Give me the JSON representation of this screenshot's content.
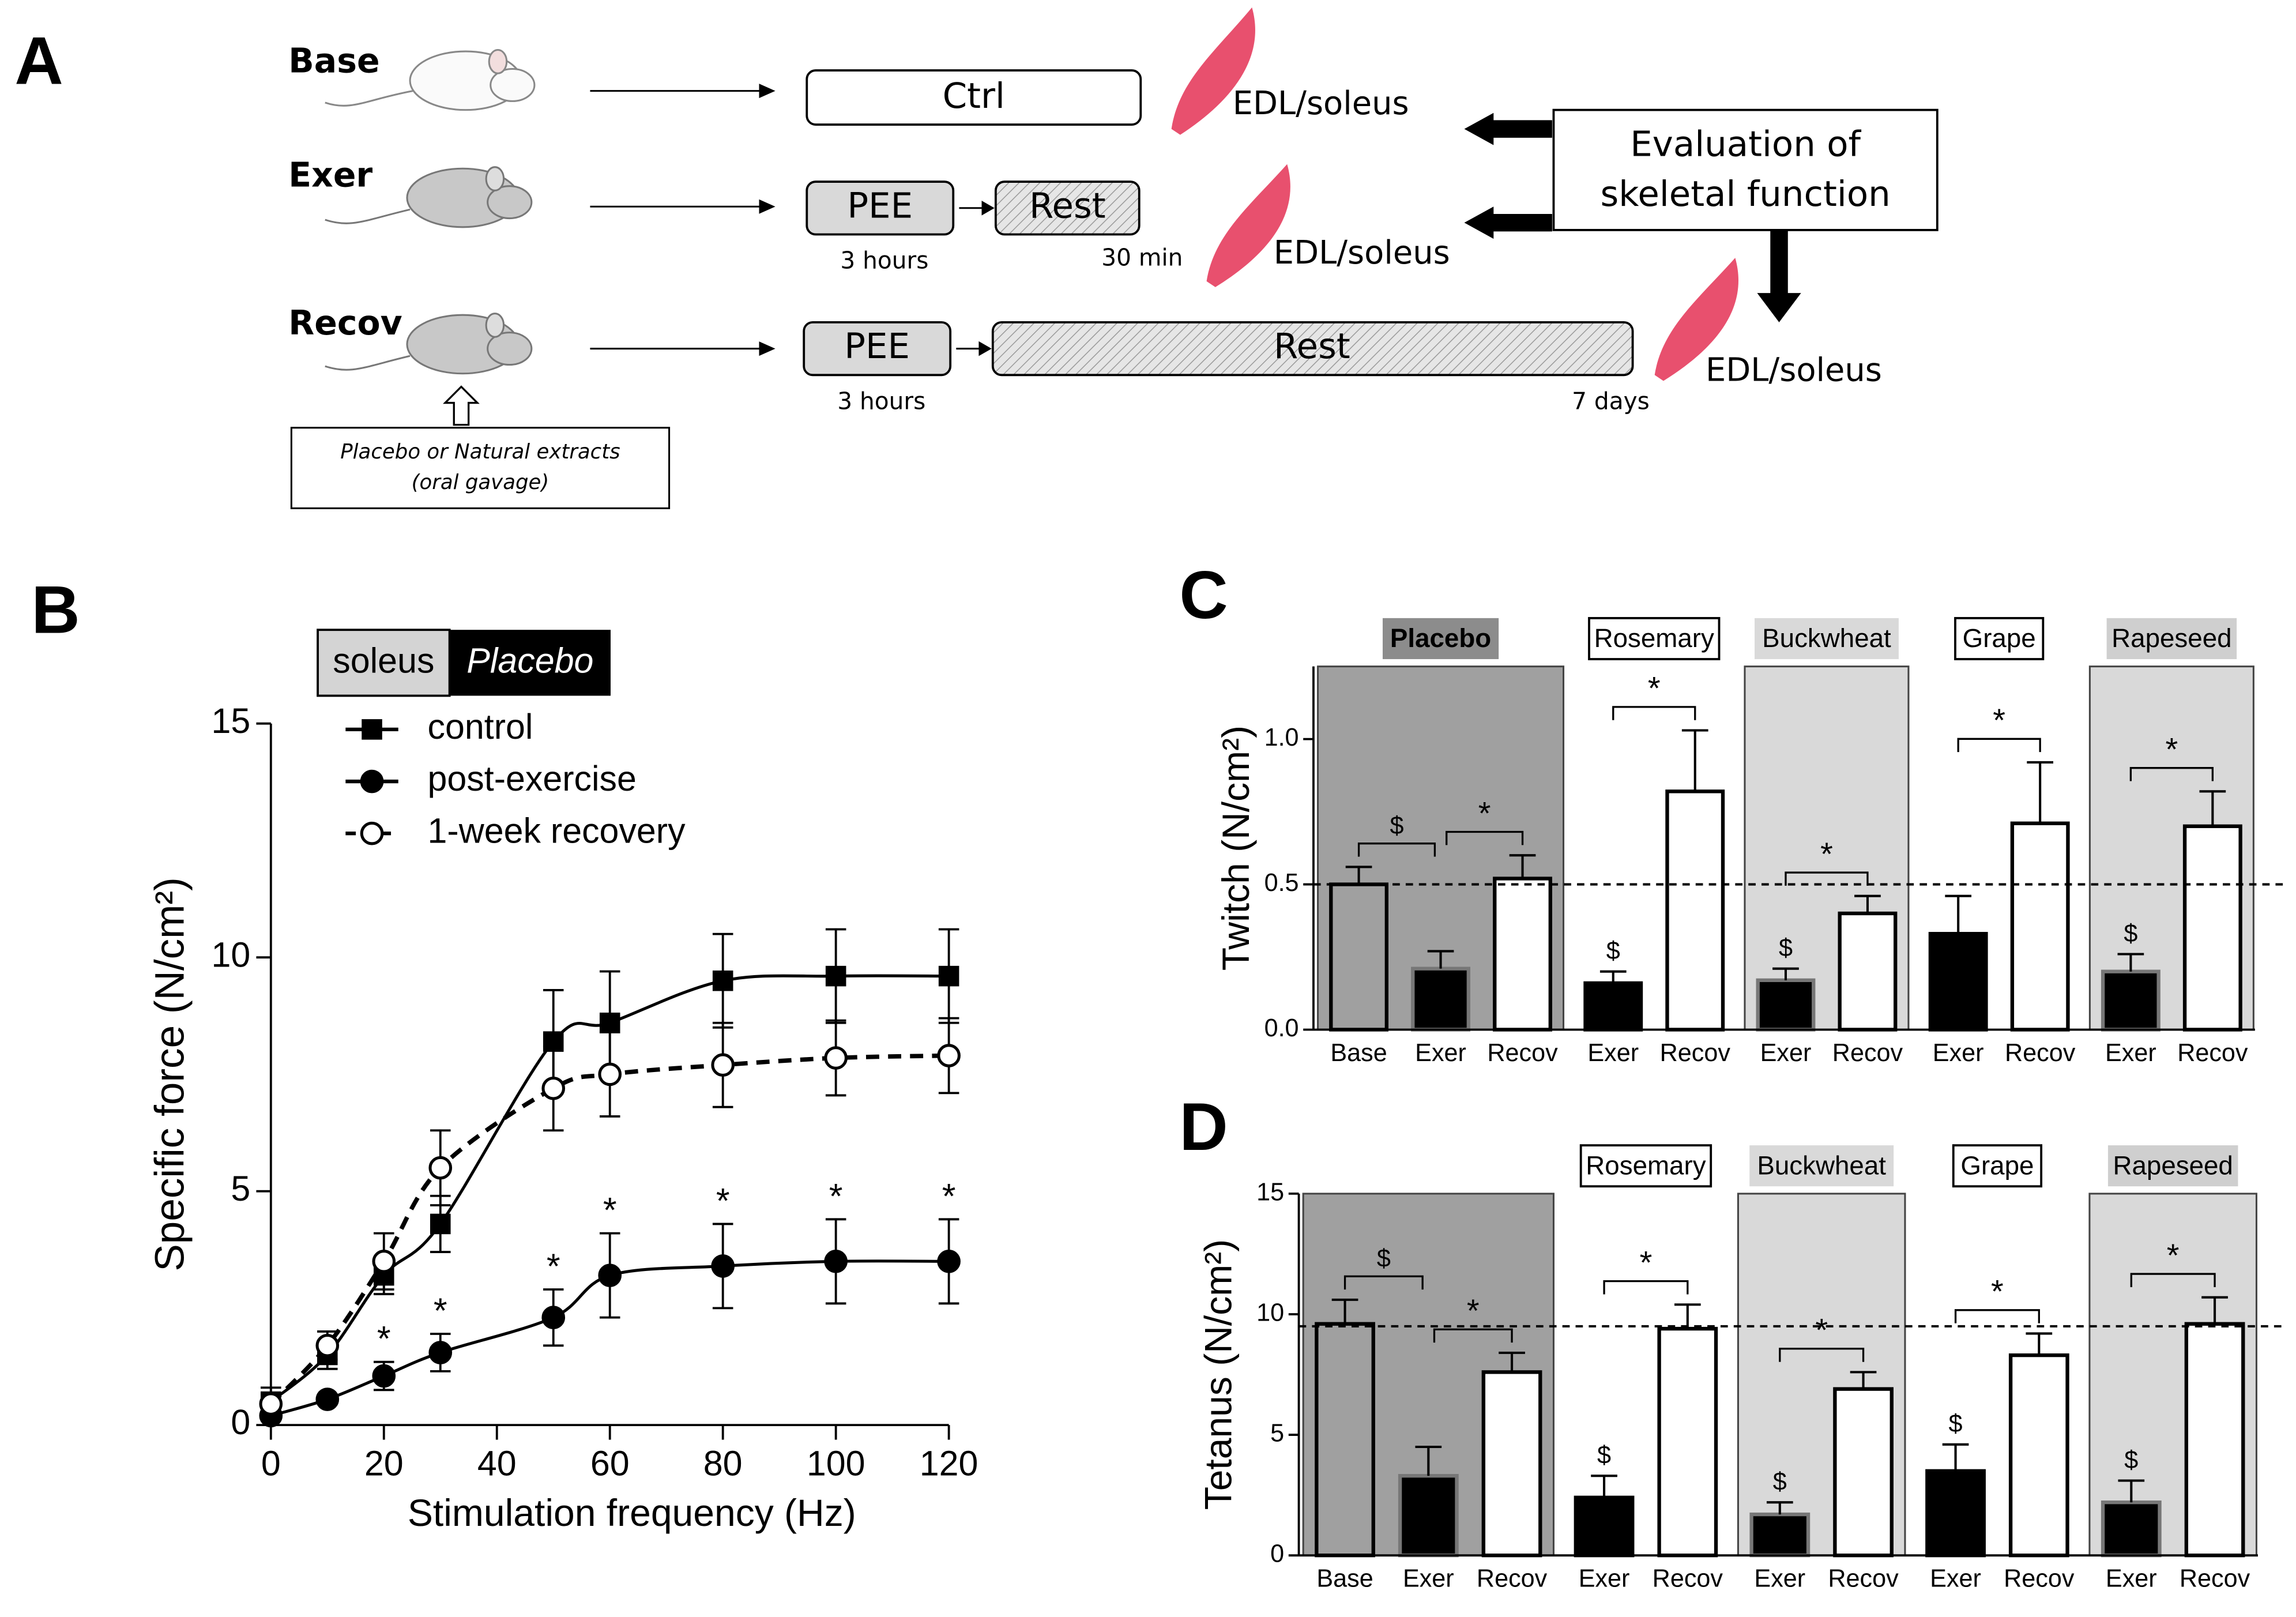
{
  "panel_a": {
    "label": "A",
    "groups": [
      "Base",
      "Exer",
      "Recov"
    ],
    "ctrl": "Ctrl",
    "pee": [
      "PEE",
      "PEE"
    ],
    "rest": [
      "Rest",
      "Rest"
    ],
    "durations": [
      "3 hours",
      "30 min",
      "3 hours",
      "7 days"
    ],
    "tissue": [
      "EDL/soleus",
      "EDL/soleus",
      "EDL/soleus"
    ],
    "evaluation": [
      "Evaluation of",
      "skeletal function"
    ],
    "treatment": [
      "Placebo  or Natural extracts",
      "(oral gavage)"
    ]
  },
  "chart_data": [
    {
      "type": "line",
      "panel": "B",
      "legend_title": [
        "soleus",
        "Placebo"
      ],
      "xlabel": "Stimulation frequency (Hz)",
      "ylabel": "Specific force (N/cm²)",
      "x": [
        0,
        10,
        20,
        30,
        50,
        60,
        80,
        100,
        120
      ],
      "xlim": [
        0,
        120
      ],
      "xticks": [
        0,
        20,
        40,
        60,
        80,
        100,
        120
      ],
      "ylim": [
        0,
        15
      ],
      "yticks": [
        0,
        5,
        10,
        15
      ],
      "series": [
        {
          "name": "control",
          "color": "#000000",
          "marker": "square",
          "dashed": false,
          "values": [
            0.5,
            1.5,
            3.2,
            4.3,
            8.2,
            8.6,
            9.5,
            9.6,
            9.6
          ],
          "errors": [
            0.3,
            0.3,
            0.4,
            0.6,
            1.1,
            1.1,
            1.0,
            1.0,
            1.0
          ]
        },
        {
          "name": "post-exercise",
          "color": "#000000",
          "marker": "circle",
          "dashed": false,
          "values": [
            0.2,
            0.55,
            1.05,
            1.55,
            2.3,
            3.2,
            3.4,
            3.5,
            3.5
          ],
          "errors": [
            0.1,
            0.1,
            0.3,
            0.4,
            0.6,
            0.9,
            0.9,
            0.9,
            0.9
          ]
        },
        {
          "name": "1-week recovery",
          "color": "#000000",
          "marker": "open-circle",
          "dashed": true,
          "values": [
            0.45,
            1.7,
            3.5,
            5.5,
            7.2,
            7.5,
            7.7,
            7.85,
            7.9
          ],
          "errors": [
            0.2,
            0.3,
            0.6,
            0.8,
            0.9,
            0.9,
            0.9,
            0.8,
            0.8
          ]
        }
      ],
      "annotations": [
        {
          "x": 20,
          "label": "*"
        },
        {
          "x": 30,
          "label": "*"
        },
        {
          "x": 50,
          "label": "*"
        },
        {
          "x": 60,
          "label": "*"
        },
        {
          "x": 80,
          "label": "*"
        },
        {
          "x": 100,
          "label": "*"
        },
        {
          "x": 120,
          "label": "*"
        }
      ]
    },
    {
      "type": "bar",
      "panel": "C",
      "ylabel": "Twitch (N/cm²)",
      "ylim": [
        0,
        1.25
      ],
      "yticks": [
        {
          "value": 0,
          "label": "0.0"
        },
        0.5,
        {
          "value": 1,
          "label": "1.0"
        }
      ],
      "reference_line": 0.5,
      "bar_colors": {
        "Base": "none",
        "Exer": "#000000",
        "Recov": "#ffffff"
      },
      "groups": [
        {
          "name": "Placebo",
          "background": "#a0a0a0",
          "label_background": "#8c8c8c",
          "font_weight": "bold",
          "categories": [
            "Base",
            "Exer",
            "Recov"
          ],
          "values": [
            0.5,
            0.21,
            0.52
          ],
          "errors": [
            0.06,
            0.06,
            0.08
          ],
          "brackets": [
            {
              "between": [
                "Base",
                "Exer"
              ],
              "label": "$"
            },
            {
              "between": [
                "Exer",
                "Recov"
              ],
              "label": "*"
            }
          ]
        },
        {
          "name": "Rosemary",
          "label_background": "#ffffff",
          "categories": [
            "Exer",
            "Recov"
          ],
          "values": [
            0.16,
            0.82
          ],
          "errors": [
            0.04,
            0.21
          ],
          "brackets": [
            {
              "between": [
                "Exer",
                "Recov"
              ],
              "label": "*"
            }
          ],
          "bar_annotations": [
            {
              "category": "Exer",
              "label": "$"
            }
          ]
        },
        {
          "name": "Buckwheat",
          "background": "#d9d9d9",
          "label_background": "#d9d9d9",
          "categories": [
            "Exer",
            "Recov"
          ],
          "values": [
            0.17,
            0.4
          ],
          "errors": [
            0.04,
            0.06
          ],
          "brackets": [
            {
              "between": [
                "Exer",
                "Recov"
              ],
              "label": "*"
            }
          ],
          "bar_annotations": [
            {
              "category": "Exer",
              "label": "$"
            }
          ]
        },
        {
          "name": "Grape",
          "label_background": "#ffffff",
          "categories": [
            "Exer",
            "Recov"
          ],
          "values": [
            0.33,
            0.71
          ],
          "errors": [
            0.13,
            0.21
          ],
          "brackets": [
            {
              "between": [
                "Exer",
                "Recov"
              ],
              "label": "*"
            }
          ]
        },
        {
          "name": "Rapeseed",
          "background": "#d9d9d9",
          "label_background": "#cfcfcf",
          "categories": [
            "Exer",
            "Recov"
          ],
          "values": [
            0.2,
            0.7
          ],
          "errors": [
            0.06,
            0.12
          ],
          "brackets": [
            {
              "between": [
                "Exer",
                "Recov"
              ],
              "label": "*"
            }
          ],
          "bar_annotations": [
            {
              "category": "Exer",
              "label": "$"
            }
          ]
        }
      ]
    },
    {
      "type": "bar",
      "panel": "D",
      "ylabel": "Tetanus (N/cm²)",
      "ylim": [
        0,
        15
      ],
      "yticks": [
        0,
        5,
        10,
        15
      ],
      "reference_line": 9.5,
      "bar_colors": {
        "Base": "none",
        "Exer": "#000000",
        "Recov": "#ffffff"
      },
      "groups": [
        {
          "background": "#a0a0a0",
          "categories": [
            "Base",
            "Exer",
            "Recov"
          ],
          "values": [
            9.6,
            3.3,
            7.6
          ],
          "errors": [
            1.0,
            1.2,
            0.8
          ],
          "brackets": [
            {
              "between": [
                "Base",
                "Exer"
              ],
              "label": "$"
            },
            {
              "between": [
                "Exer",
                "Recov"
              ],
              "label": "*"
            }
          ]
        },
        {
          "name": "Rosemary",
          "label_background": "#ffffff",
          "categories": [
            "Exer",
            "Recov"
          ],
          "values": [
            2.4,
            9.4
          ],
          "errors": [
            0.9,
            1.0
          ],
          "brackets": [
            {
              "between": [
                "Exer",
                "Recov"
              ],
              "label": "*"
            }
          ],
          "bar_annotations": [
            {
              "category": "Exer",
              "label": "$"
            }
          ]
        },
        {
          "name": "Buckwheat",
          "background": "#d9d9d9",
          "label_background": "#d9d9d9",
          "categories": [
            "Exer",
            "Recov"
          ],
          "values": [
            1.7,
            6.9
          ],
          "errors": [
            0.5,
            0.7
          ],
          "brackets": [
            {
              "between": [
                "Exer",
                "Recov"
              ],
              "label": "*"
            }
          ],
          "bar_annotations": [
            {
              "category": "Exer",
              "label": "$"
            }
          ]
        },
        {
          "name": "Grape",
          "label_background": "#ffffff",
          "categories": [
            "Exer",
            "Recov"
          ],
          "values": [
            3.5,
            8.3
          ],
          "errors": [
            1.1,
            0.9
          ],
          "brackets": [
            {
              "between": [
                "Exer",
                "Recov"
              ],
              "label": "*"
            }
          ],
          "bar_annotations": [
            {
              "category": "Exer",
              "label": "$"
            }
          ]
        },
        {
          "name": "Rapeseed",
          "background": "#d9d9d9",
          "label_background": "#cfcfcf",
          "categories": [
            "Exer",
            "Recov"
          ],
          "values": [
            2.2,
            9.6
          ],
          "errors": [
            0.9,
            1.1
          ],
          "brackets": [
            {
              "between": [
                "Exer",
                "Recov"
              ],
              "label": "*"
            }
          ],
          "bar_annotations": [
            {
              "category": "Exer",
              "label": "$"
            }
          ]
        }
      ]
    }
  ]
}
